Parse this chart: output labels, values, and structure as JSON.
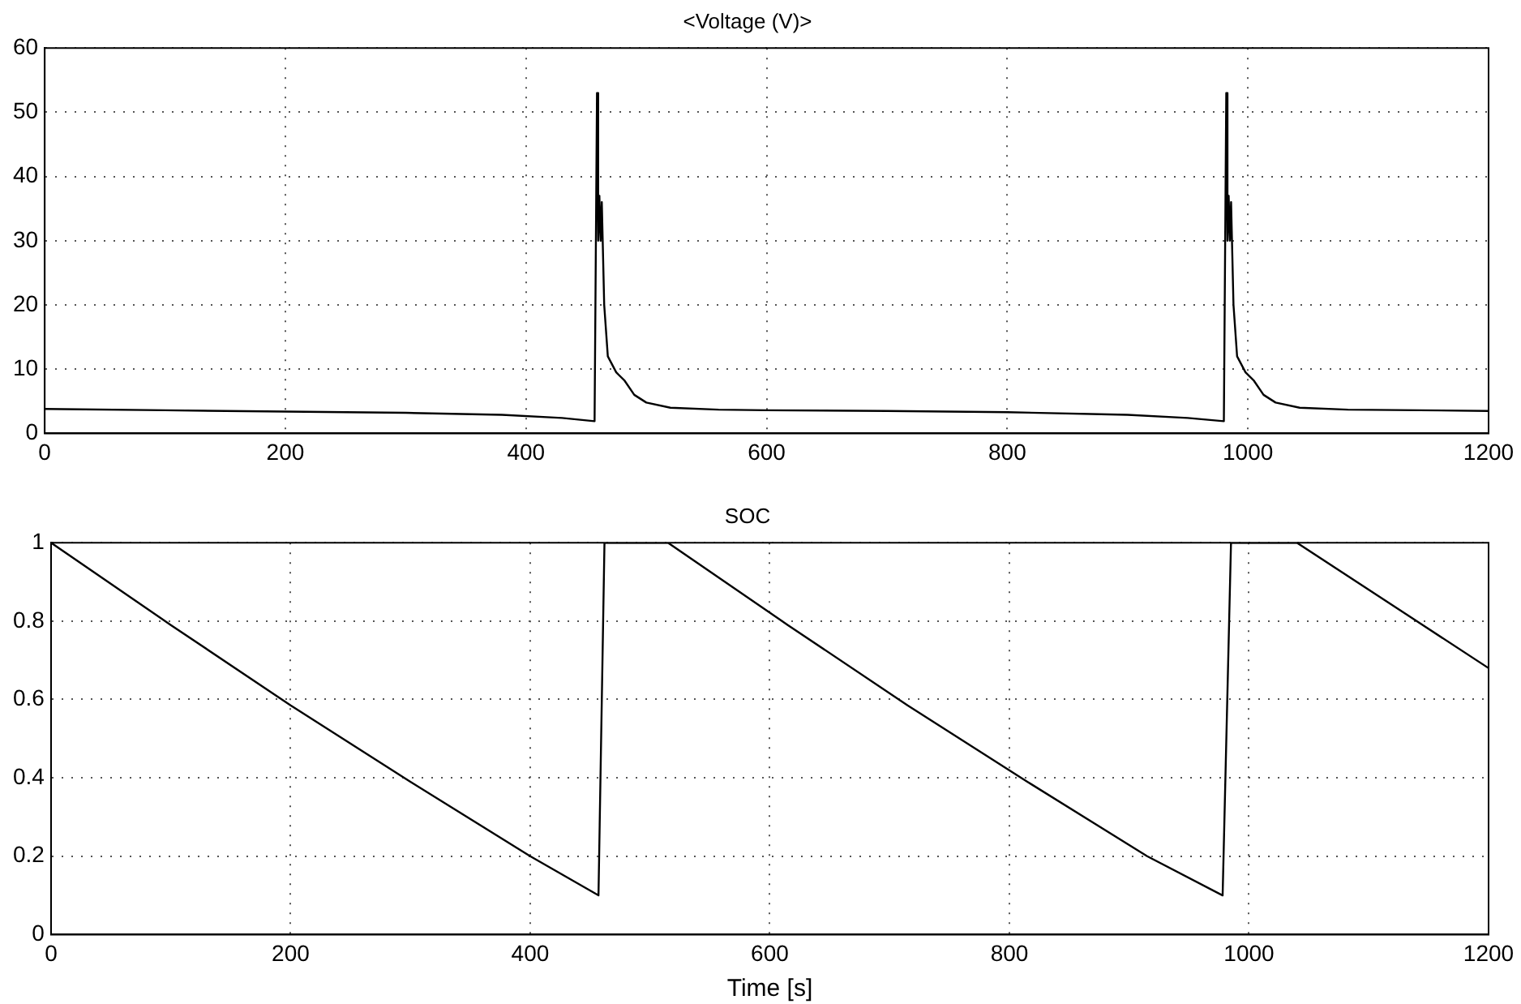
{
  "chart_data": [
    {
      "type": "line",
      "title": "<Voltage (V)>",
      "x": [
        0,
        100,
        200,
        300,
        380,
        430,
        457,
        459,
        460,
        461,
        462,
        463,
        465,
        468,
        475,
        482,
        490,
        500,
        520,
        560,
        600,
        700,
        800,
        900,
        950,
        980,
        982,
        983,
        984,
        985,
        986,
        988,
        991,
        998,
        1005,
        1013,
        1023,
        1043,
        1083,
        1200
      ],
      "series": [
        {
          "color": "#000000",
          "values": [
            3.8,
            3.6,
            3.4,
            3.2,
            2.9,
            2.4,
            1.9,
            53,
            30,
            37,
            30,
            36,
            20,
            12,
            9.5,
            8.2,
            6,
            4.8,
            4,
            3.7,
            3.6,
            3.5,
            3.3,
            2.9,
            2.4,
            1.9,
            53,
            30,
            37,
            30,
            36,
            20,
            12,
            9.5,
            8.2,
            6,
            4.8,
            4,
            3.7,
            3.5
          ]
        }
      ],
      "xlim": [
        0,
        1200
      ],
      "xticks": [
        0,
        200,
        400,
        600,
        800,
        1000,
        1200
      ],
      "ylim": [
        0,
        60
      ],
      "yticks": [
        0,
        10,
        20,
        30,
        40,
        50,
        60
      ],
      "grid": true,
      "marker": "none"
    },
    {
      "type": "line",
      "title": "SOC",
      "xlabel": "Time [s]",
      "x": [
        0,
        100,
        200,
        300,
        400,
        457,
        462,
        515,
        615,
        715,
        815,
        915,
        978,
        985,
        1040,
        1200
      ],
      "series": [
        {
          "color": "#000000",
          "values": [
            1,
            0.79,
            0.585,
            0.39,
            0.2,
            0.1,
            1,
            1,
            0.79,
            0.585,
            0.39,
            0.2,
            0.1,
            1,
            1,
            0.68
          ]
        }
      ],
      "xlim": [
        0,
        1200
      ],
      "xticks": [
        0,
        200,
        400,
        600,
        800,
        1000,
        1200
      ],
      "ylim": [
        0,
        1
      ],
      "yticks": [
        0,
        0.2,
        0.4,
        0.6,
        0.8,
        1
      ],
      "grid": true,
      "marker": "none"
    }
  ]
}
